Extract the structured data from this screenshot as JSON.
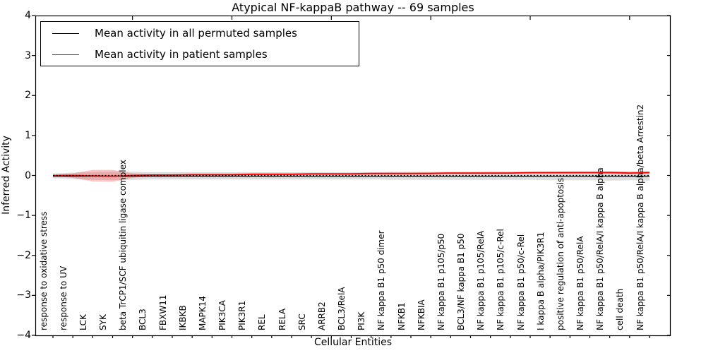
{
  "title": "Atypical NF-kappaB pathway -- 69 samples",
  "xlabel": "Cellular Entities",
  "ylabel": "Inferred Activity",
  "legend": {
    "items": [
      {
        "label": "Mean activity in all permuted samples",
        "color": "#000000"
      },
      {
        "label": "Mean activity in patient samples",
        "color": "#ff0000"
      }
    ]
  },
  "colors": {
    "permuted_line": "#000000",
    "patient_line": "#ff0000",
    "permuted_band": "#d8d8d8",
    "patient_band": "#ff0000",
    "frame": "#000000"
  },
  "chart_data": {
    "type": "line",
    "title": "Atypical NF-kappaB pathway -- 69 samples",
    "xlabel": "Cellular Entities",
    "ylabel": "Inferred Activity",
    "ylim": [
      -4,
      4
    ],
    "grid": false,
    "legend_position": "upper left",
    "categories": [
      "response to oxidative stress",
      "response to UV",
      "LCK",
      "SYK",
      "beta TrCP1/SCF ubiquitin ligase complex",
      "BCL3",
      "FBXW11",
      "IKBKB",
      "MAPK14",
      "PIK3CA",
      "PIK3R1",
      "REL",
      "RELA",
      "SRC",
      "ARRB2",
      "BCL3/RelA",
      "PI3K",
      "NF kappa B1 p50 dimer",
      "NFKB1",
      "NFKBIA",
      "NF kappa B1 p105/p50",
      "BCL3/NF kappa B1 p50",
      "NF kappa B1 p105/RelA",
      "NF kappa B1 p105/c-Rel",
      "NF kappa B1 p50/c-Rel",
      "I kappa B alpha/PIK3R1",
      "positive regulation of anti-apoptosis",
      "NF kappa B1 p50/RelA",
      "NF kappa B1 p50/RelA/I kappa B alpha",
      "cell death",
      "NF kappa B1 p50/RelA/I kappa B alpha/beta Arrestin2"
    ],
    "series": [
      {
        "name": "Mean activity in all permuted samples",
        "color": "#000000",
        "style": "solid",
        "values": [
          -0.02,
          -0.02,
          -0.02,
          -0.02,
          -0.02,
          -0.02,
          -0.02,
          -0.02,
          -0.02,
          -0.02,
          -0.02,
          -0.02,
          -0.02,
          -0.02,
          -0.02,
          -0.02,
          -0.02,
          -0.02,
          -0.02,
          -0.02,
          -0.02,
          -0.02,
          -0.02,
          -0.02,
          -0.02,
          -0.02,
          -0.02,
          -0.02,
          -0.02,
          -0.02,
          -0.02
        ]
      },
      {
        "name": "Mean activity in patient samples",
        "color": "#ff0000",
        "style": "solid",
        "values": [
          0.0,
          0.0,
          -0.01,
          -0.02,
          0.0,
          0.01,
          0.01,
          0.02,
          0.02,
          0.02,
          0.03,
          0.03,
          0.03,
          0.04,
          0.04,
          0.04,
          0.05,
          0.05,
          0.05,
          0.05,
          0.06,
          0.06,
          0.06,
          0.06,
          0.07,
          0.07,
          0.07,
          0.07,
          0.07,
          0.06,
          0.07
        ]
      }
    ],
    "reference_line": {
      "value": 0,
      "color": "#000000",
      "style": "dashed"
    },
    "bands": [
      {
        "name": "permuted activity range",
        "color": "#d8d8d8",
        "opacity": 0.85,
        "upper": [
          0.05,
          0.07,
          0.09,
          0.1,
          0.09,
          0.08,
          0.08,
          0.08,
          0.08,
          0.08,
          0.08,
          0.08,
          0.08,
          0.08,
          0.08,
          0.08,
          0.08,
          0.09,
          0.09,
          0.09,
          0.09,
          0.09,
          0.09,
          0.09,
          0.09,
          0.1,
          0.1,
          0.1,
          0.11,
          0.1,
          0.11
        ],
        "lower": [
          -0.07,
          -0.09,
          -0.11,
          -0.12,
          -0.11,
          -0.1,
          -0.1,
          -0.1,
          -0.1,
          -0.1,
          -0.1,
          -0.1,
          -0.1,
          -0.1,
          -0.1,
          -0.1,
          -0.1,
          -0.11,
          -0.11,
          -0.11,
          -0.11,
          -0.11,
          -0.11,
          -0.11,
          -0.11,
          -0.12,
          -0.12,
          -0.12,
          -0.13,
          -0.12,
          -0.13
        ]
      },
      {
        "name": "patient activity range",
        "color": "#ff0000",
        "opacity": 0.22,
        "upper": [
          0.01,
          0.05,
          0.14,
          0.14,
          0.05,
          0.03,
          0.03,
          0.04,
          0.04,
          0.04,
          0.05,
          0.05,
          0.05,
          0.06,
          0.06,
          0.06,
          0.07,
          0.07,
          0.07,
          0.08,
          0.08,
          0.08,
          0.09,
          0.09,
          0.09,
          0.09,
          0.1,
          0.1,
          0.1,
          0.09,
          0.1
        ],
        "lower": [
          -0.01,
          -0.06,
          -0.15,
          -0.16,
          -0.06,
          -0.02,
          -0.01,
          -0.01,
          -0.01,
          -0.01,
          0.0,
          0.0,
          0.0,
          0.01,
          0.01,
          0.01,
          0.02,
          0.02,
          0.02,
          0.03,
          0.03,
          0.03,
          0.03,
          0.04,
          0.04,
          0.04,
          0.04,
          0.05,
          0.04,
          0.03,
          0.04
        ]
      }
    ],
    "ytick_values": [
      4,
      3,
      2,
      1,
      0,
      -1,
      -2,
      -3,
      -4
    ],
    "ytick_labels": [
      "4",
      "3",
      "2",
      "1",
      "0",
      "−1",
      "−2",
      "−3",
      "−4"
    ],
    "top_tick_indices": [
      4,
      9,
      14,
      19,
      24,
      29
    ]
  }
}
